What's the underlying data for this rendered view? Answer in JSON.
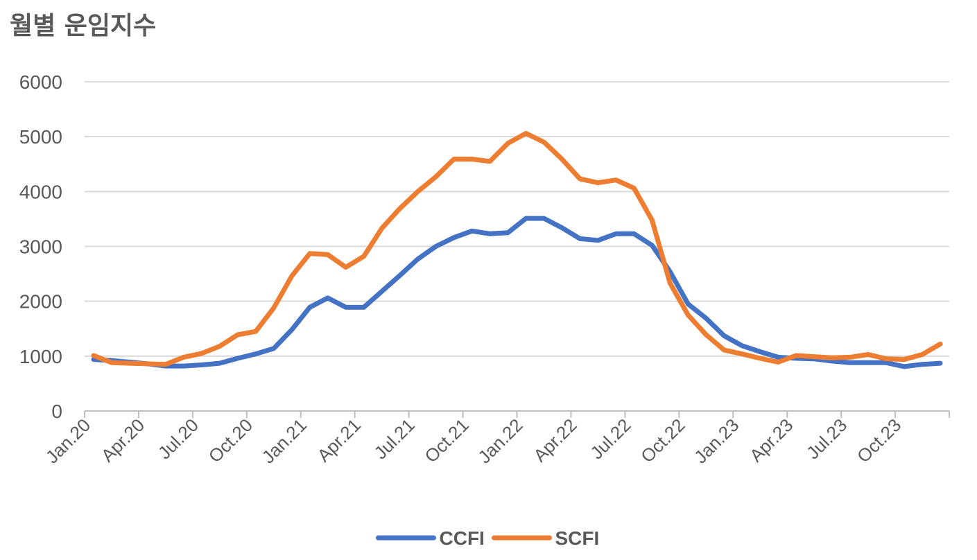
{
  "chart_data": {
    "type": "line",
    "title": "월별 운임지수",
    "xlabel": "",
    "ylabel": "",
    "ylim": [
      0,
      6000
    ],
    "yticks": [
      0,
      1000,
      2000,
      3000,
      4000,
      5000,
      6000
    ],
    "grid": true,
    "legend_position": "bottom",
    "x": [
      "Jan.20",
      "Feb.20",
      "Mar.20",
      "Apr.20",
      "May.20",
      "Jun.20",
      "Jul.20",
      "Aug.20",
      "Sep.20",
      "Oct.20",
      "Nov.20",
      "Dec.20",
      "Jan.21",
      "Feb.21",
      "Mar.21",
      "Apr.21",
      "May.21",
      "Jun.21",
      "Jul.21",
      "Aug.21",
      "Sep.21",
      "Oct.21",
      "Nov.21",
      "Dec.21",
      "Jan.22",
      "Feb.22",
      "Mar.22",
      "Apr.22",
      "May.22",
      "Jun.22",
      "Jul.22",
      "Aug.22",
      "Sep.22",
      "Oct.22",
      "Nov.22",
      "Dec.22",
      "Jan.23",
      "Feb.23",
      "Mar.23",
      "Apr.23",
      "May.23",
      "Jun.23",
      "Jul.23",
      "Aug.23",
      "Sep.23",
      "Oct.23",
      "Nov.23",
      "Dec.23"
    ],
    "x_tick_labels": [
      "Jan.20",
      "Apr.20",
      "Jul.20",
      "Oct.20",
      "Jan.21",
      "Apr.21",
      "Jul.21",
      "Oct.21",
      "Jan.22",
      "Apr.22",
      "Jul.22",
      "Oct.22",
      "Jan.23",
      "Apr.23",
      "Jul.23",
      "Oct.23"
    ],
    "series": [
      {
        "name": "CCFI",
        "color": "#4472C4",
        "values": [
          940,
          920,
          890,
          860,
          820,
          820,
          840,
          870,
          960,
          1040,
          1140,
          1480,
          1890,
          2060,
          1890,
          1890,
          2180,
          2470,
          2770,
          3000,
          3160,
          3280,
          3230,
          3250,
          3510,
          3510,
          3340,
          3140,
          3110,
          3230,
          3230,
          3020,
          2540,
          1950,
          1690,
          1370,
          1190,
          1080,
          980,
          960,
          950,
          910,
          880,
          880,
          880,
          810,
          850,
          870
        ]
      },
      {
        "name": "SCFI",
        "color": "#ED7D31",
        "values": [
          1010,
          880,
          870,
          860,
          850,
          980,
          1050,
          1180,
          1390,
          1450,
          1880,
          2460,
          2870,
          2850,
          2620,
          2820,
          3330,
          3690,
          4000,
          4270,
          4590,
          4590,
          4550,
          4880,
          5060,
          4900,
          4590,
          4230,
          4160,
          4210,
          4060,
          3480,
          2330,
          1750,
          1390,
          1110,
          1040,
          960,
          890,
          1010,
          990,
          970,
          980,
          1030,
          950,
          940,
          1030,
          1220
        ]
      }
    ]
  }
}
